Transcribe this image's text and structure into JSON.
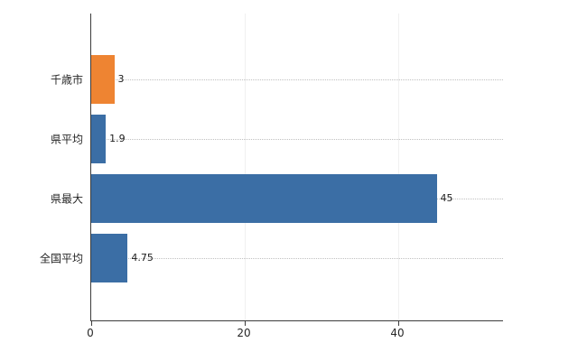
{
  "chart_data": {
    "type": "bar",
    "orientation": "horizontal",
    "title": "",
    "xlabel": "",
    "ylabel": "",
    "categories": [
      "千歳市",
      "県平均",
      "県最大",
      "全国平均"
    ],
    "values": [
      3,
      1.9,
      45,
      4.75
    ],
    "value_labels": [
      "3",
      "1.9",
      "45",
      "4.75"
    ],
    "bar_colors": [
      "#ee8432",
      "#3b6ea5",
      "#3b6ea5",
      "#3b6ea5"
    ],
    "x_ticks": [
      "0",
      "20",
      "40"
    ],
    "x_tick_values": [
      0,
      20,
      40
    ],
    "xlim": [
      0,
      53.6
    ],
    "grid": "dotted-horizontal",
    "legend": "none"
  },
  "colors": {
    "highlight_bar": "#ee8432",
    "default_bar": "#3b6ea5",
    "axis": "#3c3c3c",
    "gridline": "#c0c0c0",
    "background": "#ffffff"
  }
}
